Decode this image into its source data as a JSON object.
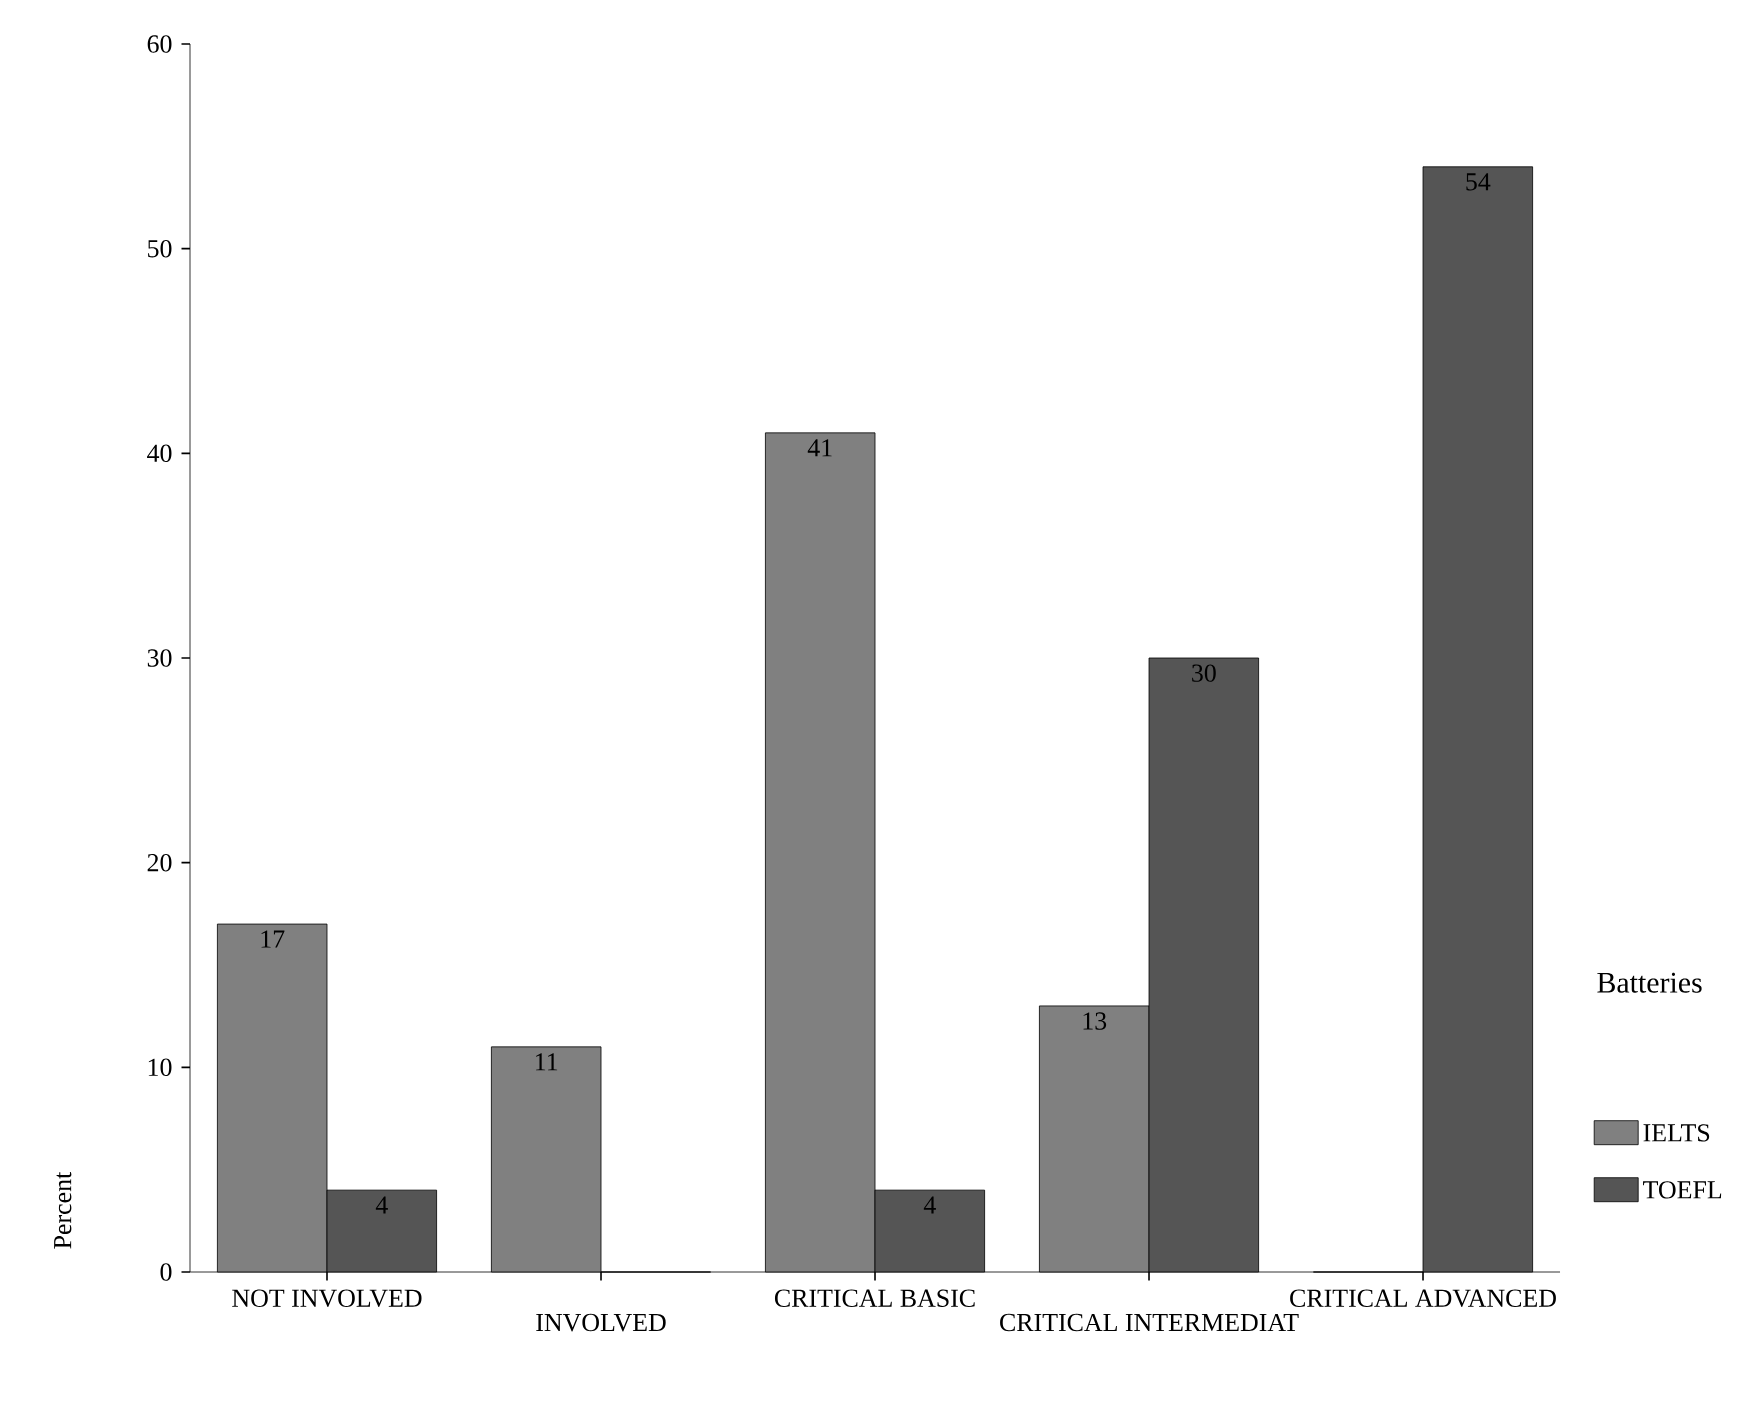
{
  "chart_data": {
    "type": "bar",
    "ylabel": "Percent",
    "legend_title": "Batteries",
    "legend": "right",
    "grid": false,
    "categories": [
      "NOT INVOLVED",
      "INVOLVED",
      "CRITICAL BASIC",
      "CRITICAL INTERMEDIAT",
      "CRITICAL ADVANCED"
    ],
    "ylim": [
      0,
      60
    ],
    "yticks": [
      0,
      10,
      20,
      30,
      40,
      50,
      60
    ],
    "series": [
      {
        "name": "IELTS",
        "color": "#808080",
        "values": [
          17,
          11,
          41,
          13,
          0
        ],
        "value_labels": [
          "17",
          "11",
          "41",
          "13",
          null
        ]
      },
      {
        "name": "TOEFL",
        "color": "#555555",
        "values": [
          4,
          0,
          4,
          30,
          54
        ],
        "value_labels": [
          "4",
          null,
          "4",
          "30",
          "54"
        ]
      }
    ]
  }
}
